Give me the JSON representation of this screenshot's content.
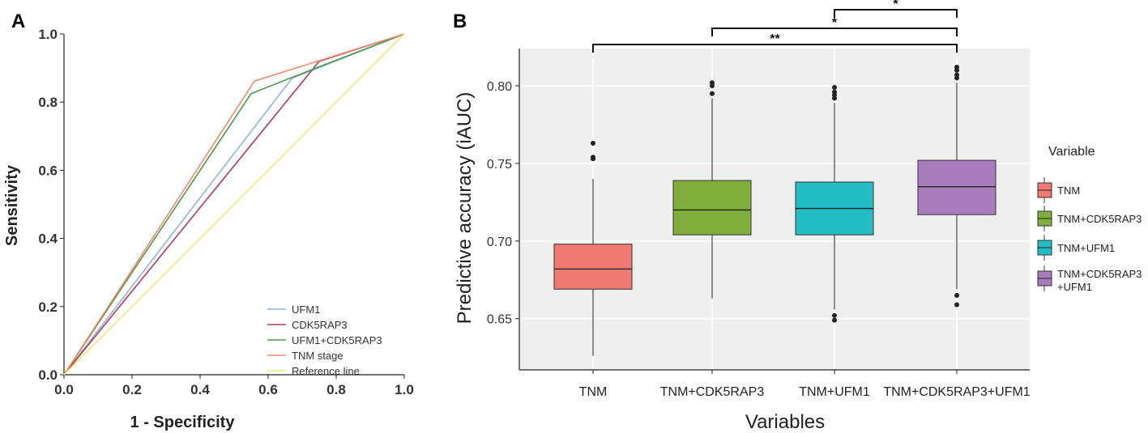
{
  "chart_data": [
    {
      "panel": "A",
      "type": "line",
      "xlabel": "1 - Specificity",
      "ylabel": "Sensitivity",
      "xlim": [
        0,
        1
      ],
      "ylim": [
        0,
        1
      ],
      "ticks": [
        "0.0",
        "0.2",
        "0.4",
        "0.6",
        "0.8",
        "1.0"
      ],
      "grid": false,
      "legend_position": "bottom-right",
      "series": [
        {
          "name": "UFM1",
          "color": "#8fb4d8",
          "x": [
            0,
            0.67,
            1
          ],
          "y": [
            0,
            0.87,
            1
          ]
        },
        {
          "name": "CDK5RAP3",
          "color": "#b03a5a",
          "x": [
            0,
            0.75,
            1
          ],
          "y": [
            0,
            0.92,
            1
          ]
        },
        {
          "name": "UFM1+CDK5RAP3",
          "color": "#4c9a4c",
          "x": [
            0,
            0.55,
            0.74,
            1
          ],
          "y": [
            0,
            0.825,
            0.9,
            1
          ]
        },
        {
          "name": "TNM stage",
          "color": "#f28a6a",
          "x": [
            0,
            0.56,
            1
          ],
          "y": [
            0,
            0.862,
            1
          ]
        },
        {
          "name": "Reference line",
          "color": "#eeea7a",
          "x": [
            0,
            1
          ],
          "y": [
            0,
            1
          ]
        }
      ]
    },
    {
      "panel": "B",
      "type": "box",
      "title": "",
      "xlabel": "Variables",
      "ylabel": "Predictive accuracy (iAUC)",
      "ylim": [
        0.617,
        0.824
      ],
      "yticks": [
        "0.65",
        "0.70",
        "0.75",
        "0.80"
      ],
      "grid": true,
      "legend_title": "Variable",
      "legend_position": "right",
      "categories": [
        "TNM",
        "TNM+CDK5RAP3",
        "TNM+UFM1",
        "TNM+CDK5RAP3+UFM1"
      ],
      "legend_labels": [
        [
          "TNM"
        ],
        [
          "TNM+CDK5RAP3"
        ],
        [
          "TNM+UFM1"
        ],
        [
          "TNM+CDK5RAP3",
          "+UFM1"
        ]
      ],
      "boxes": [
        {
          "name": "TNM",
          "color": "#f07a72",
          "whisker_low": 0.626,
          "q1": 0.669,
          "median": 0.682,
          "q3": 0.698,
          "whisker_high": 0.74,
          "outliers": [
            0.753,
            0.754,
            0.763
          ]
        },
        {
          "name": "TNM+CDK5RAP3",
          "color": "#7fae3a",
          "whisker_low": 0.663,
          "q1": 0.704,
          "median": 0.72,
          "q3": 0.739,
          "whisker_high": 0.792,
          "outliers": [
            0.795,
            0.8,
            0.802
          ]
        },
        {
          "name": "TNM+UFM1",
          "color": "#21bcc4",
          "whisker_low": 0.656,
          "q1": 0.704,
          "median": 0.721,
          "q3": 0.738,
          "whisker_high": 0.789,
          "outliers": [
            0.649,
            0.652,
            0.792,
            0.794,
            0.796,
            0.799
          ]
        },
        {
          "name": "TNM+CDK5RAP3+UFM1",
          "color": "#a97dbd",
          "whisker_low": 0.669,
          "q1": 0.717,
          "median": 0.735,
          "q3": 0.752,
          "whisker_high": 0.802,
          "outliers": [
            0.659,
            0.665,
            0.805,
            0.807,
            0.81,
            0.812
          ]
        }
      ],
      "significance": [
        {
          "from": "TNM",
          "to": "TNM+CDK5RAP3+UFM1",
          "label": "**"
        },
        {
          "from": "TNM+CDK5RAP3",
          "to": "TNM+CDK5RAP3+UFM1",
          "label": "*"
        },
        {
          "from": "TNM+UFM1",
          "to": "TNM+CDK5RAP3+UFM1",
          "label": "*"
        }
      ]
    }
  ],
  "labels": {
    "panel_a": "A",
    "panel_b": "B"
  }
}
